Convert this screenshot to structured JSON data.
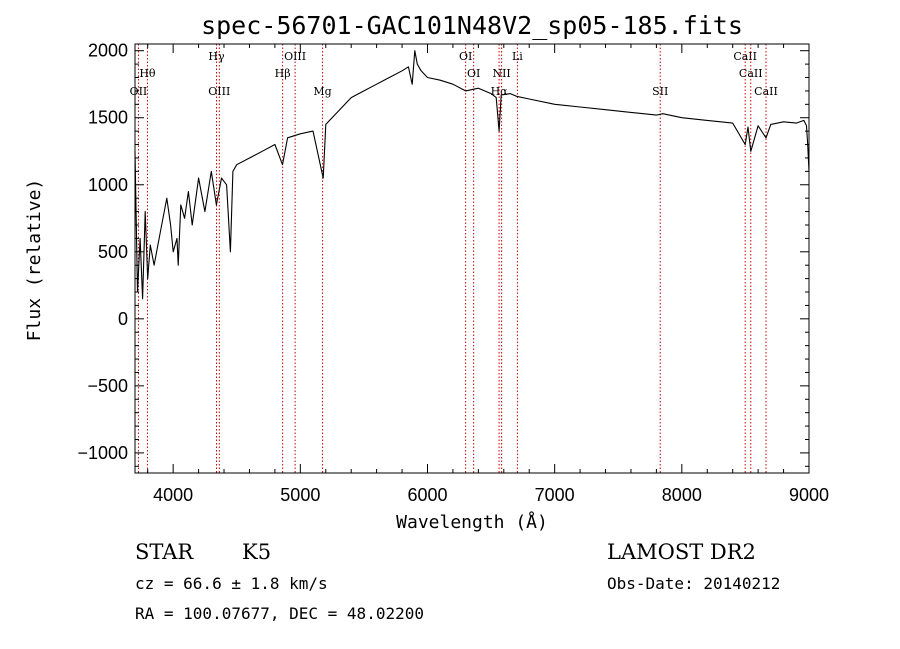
{
  "chart_data": {
    "type": "line",
    "title": "spec-56701-GAC101N48V2_sp05-185.fits",
    "xlabel": "Wavelength (Å)",
    "ylabel": "Flux (relative)",
    "xlim": [
      3700,
      9000
    ],
    "ylim": [
      -1150,
      2050
    ],
    "x_ticks": [
      4000,
      5000,
      6000,
      7000,
      8000,
      9000
    ],
    "y_ticks": [
      -1000,
      -500,
      0,
      500,
      1000,
      1500,
      2000
    ],
    "x_tick_labels": [
      "4000",
      "5000",
      "6000",
      "7000",
      "8000",
      "9000"
    ],
    "y_tick_labels": [
      "−1000",
      "−500",
      "0",
      "500",
      "1000",
      "1500",
      "2000"
    ],
    "grid": false,
    "spectrum": {
      "x": [
        3700,
        3720,
        3740,
        3760,
        3780,
        3800,
        3820,
        3850,
        3900,
        3950,
        3980,
        4000,
        4030,
        4040,
        4060,
        4090,
        4120,
        4150,
        4200,
        4250,
        4300,
        4340,
        4380,
        4420,
        4450,
        4470,
        4500,
        4600,
        4700,
        4800,
        4860,
        4900,
        5000,
        5100,
        5180,
        5200,
        5300,
        5400,
        5500,
        5600,
        5700,
        5800,
        5850,
        5880,
        5900,
        5920,
        5950,
        6000,
        6100,
        6200,
        6300,
        6400,
        6500,
        6540,
        6563,
        6580,
        6650,
        6700,
        6800,
        7000,
        7200,
        7400,
        7600,
        7800,
        7850,
        8000,
        8200,
        8400,
        8498,
        8520,
        8542,
        8600,
        8662,
        8700,
        8800,
        8900,
        8960,
        8980,
        8990,
        9000
      ],
      "y": [
        1250,
        200,
        600,
        150,
        800,
        300,
        550,
        400,
        650,
        900,
        700,
        500,
        600,
        400,
        850,
        750,
        950,
        700,
        1050,
        800,
        1100,
        850,
        1050,
        1000,
        500,
        1100,
        1150,
        1200,
        1250,
        1300,
        1150,
        1350,
        1380,
        1400,
        1050,
        1450,
        1550,
        1650,
        1700,
        1750,
        1800,
        1850,
        1880,
        1750,
        2000,
        1900,
        1850,
        1800,
        1780,
        1750,
        1700,
        1720,
        1680,
        1650,
        1400,
        1670,
        1680,
        1660,
        1640,
        1600,
        1580,
        1560,
        1540,
        1520,
        1530,
        1500,
        1480,
        1460,
        1300,
        1430,
        1250,
        1440,
        1350,
        1450,
        1470,
        1460,
        1480,
        1440,
        1300,
        1100
      ]
    },
    "absorption_lines": [
      {
        "name": "OII",
        "wavelength": 3727,
        "row": 2
      },
      {
        "name": "Hθ",
        "wavelength": 3798,
        "row": 1
      },
      {
        "name": "Hγ",
        "wavelength": 4341,
        "row": 0
      },
      {
        "name": "OIII",
        "wavelength": 4363,
        "row": 2
      },
      {
        "name": "Hβ",
        "wavelength": 4861,
        "row": 1
      },
      {
        "name": "OIII",
        "wavelength": 4959,
        "row": 0
      },
      {
        "name": "Mg",
        "wavelength": 5175,
        "row": 2
      },
      {
        "name": "OI",
        "wavelength": 6300,
        "row": 0
      },
      {
        "name": "OI",
        "wavelength": 6363,
        "row": 1
      },
      {
        "name": "Hα",
        "wavelength": 6563,
        "row": 2
      },
      {
        "name": "NII",
        "wavelength": 6583,
        "row": 1
      },
      {
        "name": "Li",
        "wavelength": 6707,
        "row": 0
      },
      {
        "name": "SII",
        "wavelength": 7830,
        "row": 2
      },
      {
        "name": "CaII",
        "wavelength": 8498,
        "row": 0
      },
      {
        "name": "CaII",
        "wavelength": 8542,
        "row": 1
      },
      {
        "name": "CaII",
        "wavelength": 8662,
        "row": 2
      }
    ]
  },
  "info": {
    "object_class": "STAR",
    "subclass": "K5",
    "survey": "LAMOST DR2",
    "redshift": "cz = 66.6 ± 1.8 km/s",
    "obs_date": "Obs-Date: 20140212",
    "coords": "RA = 100.07677, DEC =  48.02200"
  },
  "colors": {
    "line_marker": "#cc0000",
    "spectrum": "#000000",
    "axes": "#000000"
  }
}
